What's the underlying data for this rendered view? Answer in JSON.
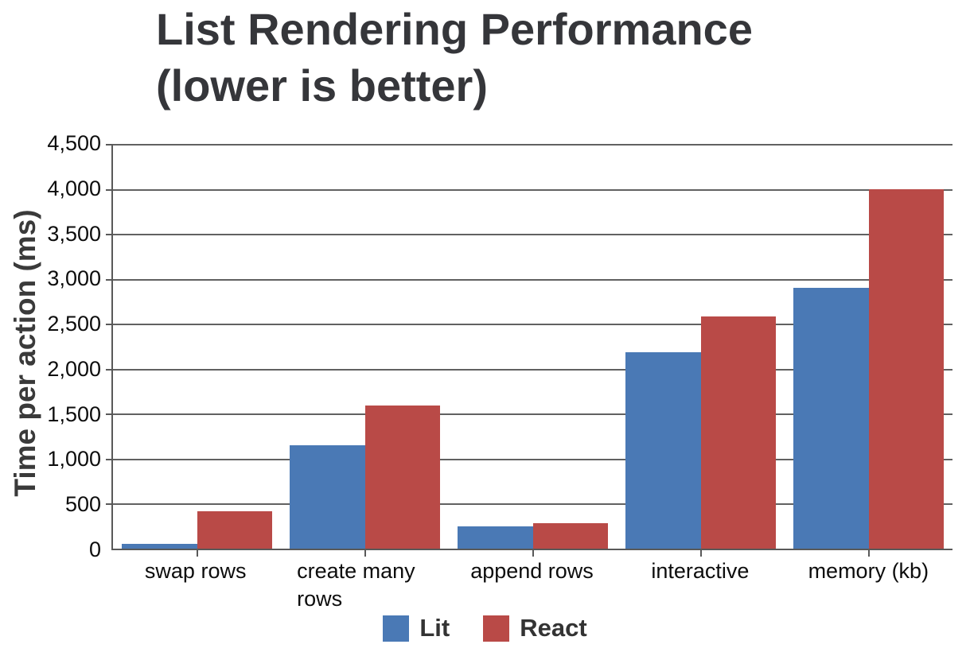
{
  "title": "List Rendering Performance\n(lower is better)",
  "chart_data": {
    "type": "bar",
    "title": "List Rendering Performance (lower is better)",
    "categories": [
      "swap rows",
      "create many rows",
      "append rows",
      "interactive",
      "memory (kb)"
    ],
    "series": [
      {
        "name": "Lit",
        "color": "#4a79b5",
        "values": [
          50,
          1150,
          245,
          2180,
          2900
        ]
      },
      {
        "name": "React",
        "color": "#b94a47",
        "values": [
          415,
          1590,
          285,
          2580,
          4000
        ]
      }
    ],
    "xlabel": "",
    "ylabel": "Time per action (ms)",
    "ylim": [
      0,
      4500
    ],
    "ytick_step": 500,
    "ytick_labels": [
      "0",
      "500",
      "1,000",
      "1,500",
      "2,000",
      "2,500",
      "3,000",
      "3,500",
      "4,000",
      "4,500"
    ],
    "grid": true,
    "legend_position": "bottom"
  },
  "colors": {
    "title_text": "#35363a",
    "axis_line": "#595959",
    "gridline": "#616161",
    "tick_text": "#0d0d0d",
    "legend_text": "#333333",
    "background": "#ffffff"
  }
}
